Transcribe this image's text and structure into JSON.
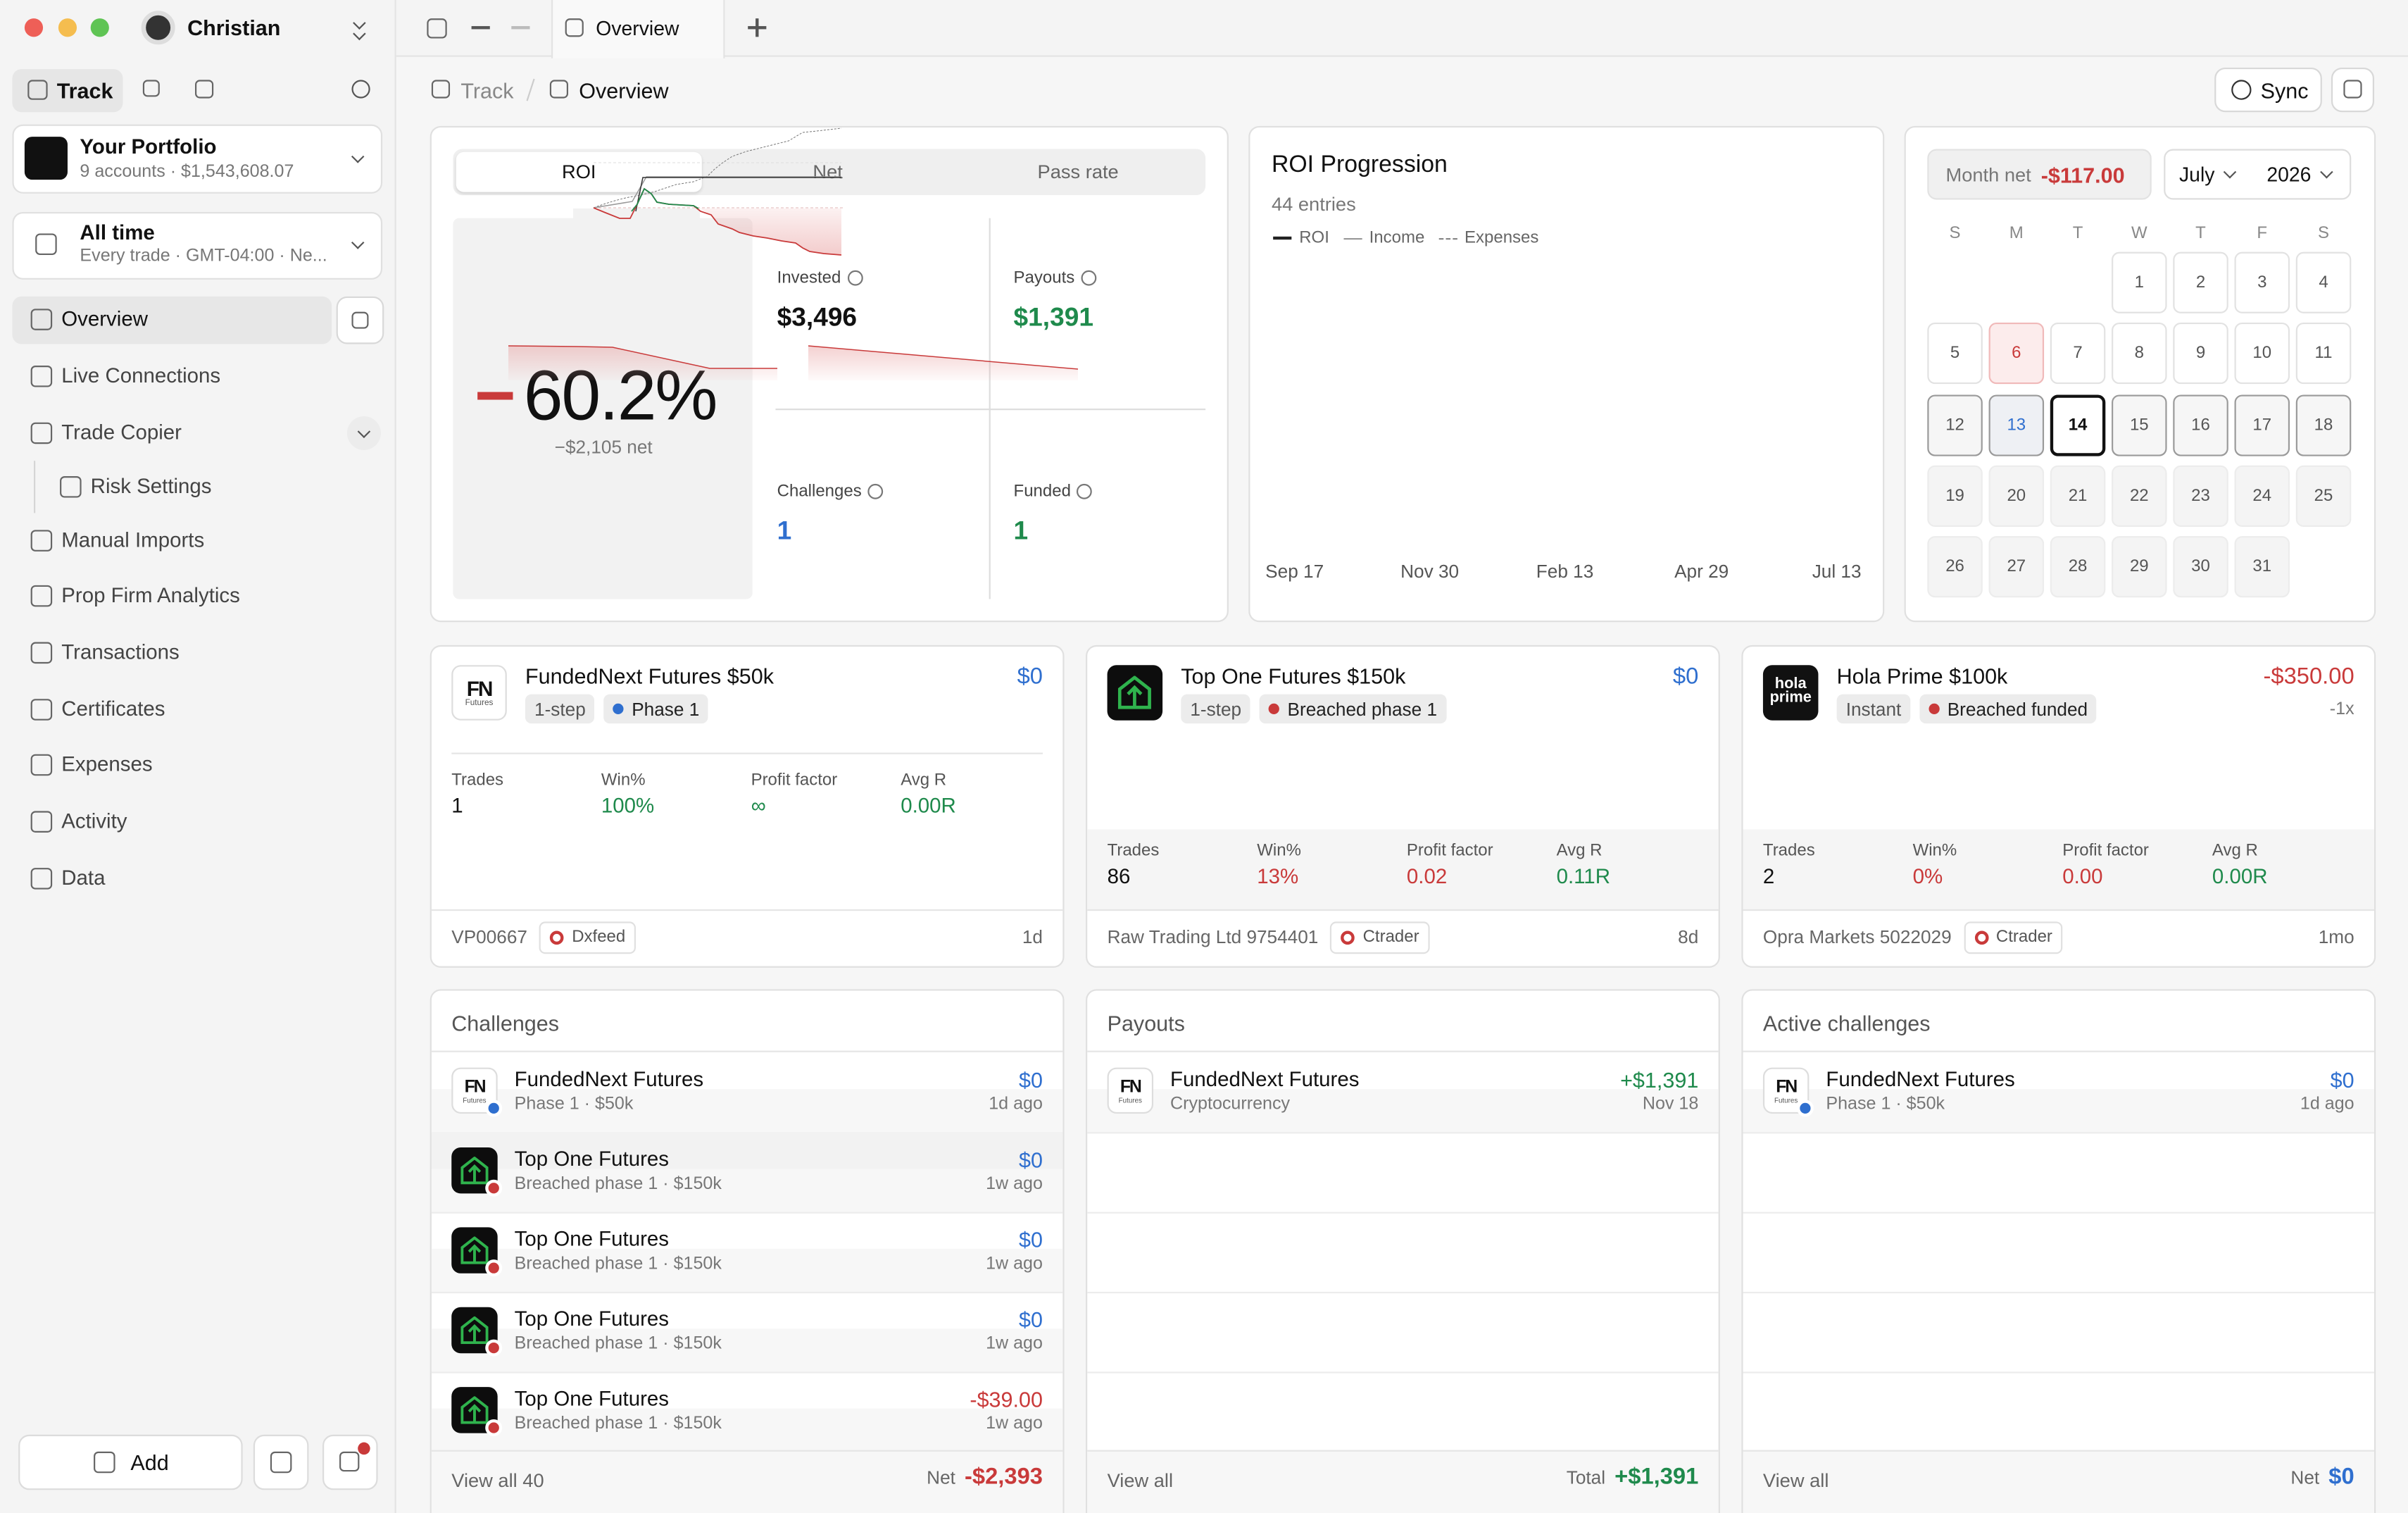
{
  "window": {
    "user": "Christian"
  },
  "sidebar": {
    "mode": "Track",
    "portfolio": {
      "name": "Your Portfolio",
      "detail": "9 accounts · $1,543,608.07"
    },
    "range": {
      "name": "All time",
      "detail": "Every trade · GMT-04:00 · Ne..."
    },
    "nav": [
      "Overview",
      "Live Connections",
      "Trade Copier",
      "Risk Settings",
      "Manual Imports",
      "Prop Firm Analytics",
      "Transactions",
      "Certificates",
      "Expenses",
      "Activity",
      "Data"
    ],
    "add": "Add"
  },
  "tab": "Overview",
  "breadcrumb": [
    "Track",
    "Overview"
  ],
  "sync": "Sync",
  "roi": {
    "tabs": [
      "ROI",
      "Net",
      "Pass rate"
    ],
    "sign": "−",
    "value": "60.2%",
    "net": "−$2,105 net",
    "stats": [
      {
        "label": "Invested",
        "value": "$3,496",
        "color": "#111111"
      },
      {
        "label": "Payouts",
        "value": "$1,391",
        "color": "#1f8a4c"
      },
      {
        "label": "Challenges",
        "value": "1",
        "color": "#2f6fcf"
      },
      {
        "label": "Funded",
        "value": "1",
        "color": "#1f8a4c"
      }
    ]
  },
  "progression": {
    "title": "ROI Progression",
    "entries": "44 entries",
    "legend": [
      "ROI",
      "Income",
      "Expenses"
    ],
    "x_labels": [
      "Sep 17",
      "Nov 30",
      "Feb 13",
      "Apr 29",
      "Jul 13"
    ]
  },
  "calendar": {
    "month_net_label": "Month net",
    "month_net": "-$117.00",
    "month": "July",
    "year": "2026",
    "weekdays": [
      "S",
      "M",
      "T",
      "W",
      "T",
      "F",
      "S"
    ],
    "days": [
      1,
      2,
      3,
      4,
      5,
      6,
      7,
      8,
      9,
      10,
      11,
      12,
      13,
      14,
      15,
      16,
      17,
      18,
      19,
      20,
      21,
      22,
      23,
      24,
      25,
      26,
      27,
      28,
      29,
      30,
      31
    ]
  },
  "accounts": [
    {
      "logo": "FN",
      "logo_sub": "Futures",
      "name": "FundedNext Futures $50k",
      "value": "$0",
      "color": "#2f6fcf",
      "tags": [
        "1-step"
      ],
      "status": "Phase 1",
      "status_color": "#2f6fcf",
      "stats": [
        {
          "label": "Trades",
          "value": "1",
          "color": "#111111"
        },
        {
          "label": "Win%",
          "value": "100%",
          "color": "#1f8a4c"
        },
        {
          "label": "Profit factor",
          "value": "∞",
          "color": "#1f8a4c"
        },
        {
          "label": "Avg R",
          "value": "0.00R",
          "color": "#1f8a4c"
        }
      ],
      "id": "VP00667",
      "feed": "Dxfeed",
      "age": "1d"
    },
    {
      "name": "Top One Futures $150k",
      "value": "$0",
      "color": "#2f6fcf",
      "tags": [
        "1-step"
      ],
      "status": "Breached phase 1",
      "status_color": "#c93a3a",
      "stats": [
        {
          "label": "Trades",
          "value": "86",
          "color": "#111111"
        },
        {
          "label": "Win%",
          "value": "13%",
          "color": "#c93a3a"
        },
        {
          "label": "Profit factor",
          "value": "0.02",
          "color": "#c93a3a"
        },
        {
          "label": "Avg R",
          "value": "0.11R",
          "color": "#1f8a4c"
        }
      ],
      "id": "Raw Trading Ltd 9754401",
      "feed": "Ctrader",
      "age": "8d"
    },
    {
      "logo": "hola prime",
      "name": "Hola Prime $100k",
      "value": "-$350.00",
      "color": "#c93a3a",
      "extra": "-1x",
      "tags": [
        "Instant"
      ],
      "status": "Breached funded",
      "status_color": "#c93a3a",
      "stats": [
        {
          "label": "Trades",
          "value": "2",
          "color": "#111111"
        },
        {
          "label": "Win%",
          "value": "0%",
          "color": "#c93a3a"
        },
        {
          "label": "Profit factor",
          "value": "0.00",
          "color": "#c93a3a"
        },
        {
          "label": "Avg R",
          "value": "0.00R",
          "color": "#1f8a4c"
        }
      ],
      "id": "Opra Markets 5022029",
      "feed": "Ctrader",
      "age": "1mo"
    }
  ],
  "panels": [
    {
      "title": "Challenges",
      "rows": [
        {
          "logo": "FN",
          "logo_sub": "Futures",
          "name": "FundedNext Futures",
          "detail": "Phase 1 · $50k",
          "value": "$0",
          "color": "#2f6fcf",
          "time": "1d ago",
          "dot": "#2f6fcf"
        },
        {
          "name": "Top One Futures",
          "detail": "Breached phase 1 · $150k",
          "value": "$0",
          "color": "#2f6fcf",
          "time": "1w ago",
          "dot": "#c93a3a"
        },
        {
          "name": "Top One Futures",
          "detail": "Breached phase 1 · $150k",
          "value": "$0",
          "color": "#2f6fcf",
          "time": "1w ago",
          "dot": "#c93a3a"
        },
        {
          "name": "Top One Futures",
          "detail": "Breached phase 1 · $150k",
          "value": "$0",
          "color": "#2f6fcf",
          "time": "1w ago",
          "dot": "#c93a3a"
        },
        {
          "name": "Top One Futures",
          "detail": "Breached phase 1 · $150k",
          "value": "-$39.00",
          "color": "#c93a3a",
          "time": "1w ago",
          "dot": "#c93a3a"
        }
      ],
      "footer": "View all 40",
      "total_label": "Net",
      "total": "-$2,393",
      "total_color": "#c93a3a"
    },
    {
      "title": "Payouts",
      "rows": [
        {
          "logo": "FN",
          "logo_sub": "Futures",
          "name": "FundedNext Futures",
          "detail": "Cryptocurrency",
          "value": "+$1,391",
          "color": "#1f8a4c",
          "time": "Nov 18"
        }
      ],
      "footer": "View all",
      "total_label": "Total",
      "total": "+$1,391",
      "total_color": "#1f8a4c"
    },
    {
      "title": "Active challenges",
      "rows": [
        {
          "logo": "FN",
          "logo_sub": "Futures",
          "name": "FundedNext Futures",
          "detail": "Phase 1 · $50k",
          "value": "$0",
          "color": "#2f6fcf",
          "time": "1d ago",
          "dot": "#2f6fcf"
        }
      ],
      "footer": "View all",
      "total_label": "Net",
      "total": "$0",
      "total_color": "#2f6fcf"
    }
  ]
}
